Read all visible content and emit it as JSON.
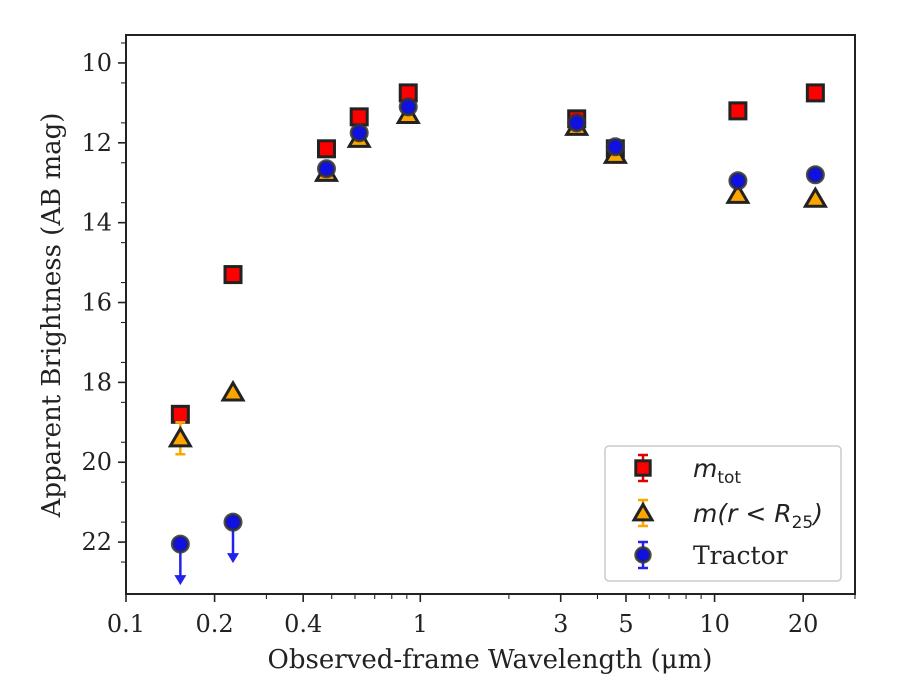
{
  "chart_data": {
    "type": "scatter",
    "xlabel": "Observed-frame Wavelength (μm)",
    "ylabel": "Apparent Brightness (AB mag)",
    "xscale": "log",
    "yaxis_inverted": true,
    "xlim": [
      0.1,
      30
    ],
    "ylim": [
      23.3,
      9.3
    ],
    "xticks": [
      0.1,
      0.2,
      0.4,
      1,
      3,
      5,
      10,
      20
    ],
    "xtick_labels": [
      "0.1",
      "0.2",
      "0.4",
      "1",
      "3",
      "5",
      "10",
      "20"
    ],
    "yticks": [
      10,
      12,
      14,
      16,
      18,
      20,
      22
    ],
    "ytick_labels": [
      "10",
      "12",
      "14",
      "16",
      "18",
      "20",
      "22"
    ],
    "legend_position": "lower-right",
    "series": [
      {
        "name": "m_tot",
        "legend_label": "m",
        "legend_sub": "tot",
        "marker": "square",
        "color": "#ff0000",
        "edge": "#222222",
        "err_color": "#e00000",
        "points": [
          {
            "x": 0.153,
            "y": 18.8
          },
          {
            "x": 0.231,
            "y": 15.3
          },
          {
            "x": 0.48,
            "y": 12.15
          },
          {
            "x": 0.62,
            "y": 11.35
          },
          {
            "x": 0.91,
            "y": 10.75
          },
          {
            "x": 3.4,
            "y": 11.4
          },
          {
            "x": 4.6,
            "y": 12.15
          },
          {
            "x": 12.0,
            "y": 11.2
          },
          {
            "x": 22.0,
            "y": 10.75
          }
        ]
      },
      {
        "name": "m(r < R_25)",
        "legend_label": "m(r < R",
        "legend_sub": "25",
        "legend_tail": ")",
        "marker": "triangle",
        "color": "#ffa500",
        "edge": "#222222",
        "err_color": "#ffa500",
        "points": [
          {
            "x": 0.153,
            "y": 19.4,
            "err": 0.4
          },
          {
            "x": 0.231,
            "y": 18.25
          },
          {
            "x": 0.48,
            "y": 12.75
          },
          {
            "x": 0.62,
            "y": 11.9
          },
          {
            "x": 0.91,
            "y": 11.3
          },
          {
            "x": 3.4,
            "y": 11.6
          },
          {
            "x": 4.6,
            "y": 12.3
          },
          {
            "x": 12.0,
            "y": 13.3
          },
          {
            "x": 22.0,
            "y": 13.4
          }
        ]
      },
      {
        "name": "Tractor",
        "legend_label": "Tractor",
        "marker": "circle",
        "color": "#1010e0",
        "edge": "#333333",
        "err_color": "#2222ee",
        "points": [
          {
            "x": 0.153,
            "y": 22.05,
            "upper_limit": true
          },
          {
            "x": 0.231,
            "y": 21.5,
            "upper_limit": true
          },
          {
            "x": 0.48,
            "y": 12.65
          },
          {
            "x": 0.62,
            "y": 11.75
          },
          {
            "x": 0.91,
            "y": 11.1
          },
          {
            "x": 3.4,
            "y": 11.5
          },
          {
            "x": 4.6,
            "y": 12.1
          },
          {
            "x": 12.0,
            "y": 12.95
          },
          {
            "x": 22.0,
            "y": 12.8
          }
        ]
      }
    ]
  }
}
